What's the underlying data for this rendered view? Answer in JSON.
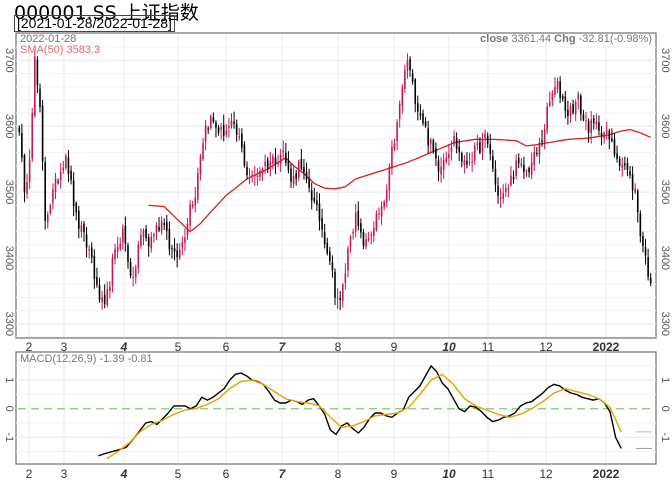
{
  "title": "000001.SS 上证指数",
  "range_label": "[2021-01-28/2022-01-28]",
  "main_panel": {
    "date_label": "2022-01-28",
    "sma_label": "SMA(50) 3583.3",
    "close_label": "close",
    "close_value": "3361.44",
    "chg_label": "Chg",
    "chg_value": "-32.81(-0.98%)"
  },
  "macd_panel": {
    "label": "MACD(12,26,9) -1.39 -0.81"
  },
  "colors": {
    "up": "#c2185b",
    "down": "#000000",
    "sma": "#d42020",
    "macd": "#000000",
    "signal": "#e8a100",
    "zero": "#7fc97f"
  },
  "chart_data": [
    {
      "type": "candlestick",
      "ylim": [
        3280,
        3740
      ],
      "yticks": [
        3300,
        3400,
        3500,
        3600,
        3700
      ],
      "x_labels": [
        {
          "label": "2",
          "bold": false,
          "italic": false
        },
        {
          "label": "3",
          "bold": false,
          "italic": false
        },
        {
          "label": "4",
          "bold": true,
          "italic": true
        },
        {
          "label": "5",
          "bold": false,
          "italic": false
        },
        {
          "label": "6",
          "bold": false,
          "italic": false
        },
        {
          "label": "7",
          "bold": true,
          "italic": true
        },
        {
          "label": "8",
          "bold": false,
          "italic": false
        },
        {
          "label": "9",
          "bold": false,
          "italic": false
        },
        {
          "label": "10",
          "bold": true,
          "italic": true
        },
        {
          "label": "11",
          "bold": false,
          "italic": false
        },
        {
          "label": "12",
          "bold": false,
          "italic": false
        },
        {
          "label": "2022",
          "bold": true,
          "italic": false
        }
      ],
      "close_anchors": [
        [
          0,
          3600
        ],
        [
          2,
          3490
        ],
        [
          4,
          3560
        ],
        [
          6,
          3700
        ],
        [
          8,
          3620
        ],
        [
          10,
          3460
        ],
        [
          14,
          3510
        ],
        [
          18,
          3560
        ],
        [
          22,
          3460
        ],
        [
          26,
          3420
        ],
        [
          28,
          3400
        ],
        [
          30,
          3350
        ],
        [
          33,
          3320
        ],
        [
          36,
          3390
        ],
        [
          38,
          3420
        ],
        [
          40,
          3440
        ],
        [
          42,
          3400
        ],
        [
          44,
          3360
        ],
        [
          46,
          3420
        ],
        [
          48,
          3440
        ],
        [
          50,
          3420
        ],
        [
          52,
          3440
        ],
        [
          54,
          3450
        ],
        [
          56,
          3460
        ],
        [
          58,
          3420
        ],
        [
          60,
          3400
        ],
        [
          62,
          3410
        ],
        [
          64,
          3440
        ],
        [
          66,
          3480
        ],
        [
          68,
          3500
        ],
        [
          70,
          3560
        ],
        [
          72,
          3600
        ],
        [
          74,
          3610
        ],
        [
          78,
          3590
        ],
        [
          82,
          3600
        ],
        [
          85,
          3580
        ],
        [
          88,
          3530
        ],
        [
          90,
          3520
        ],
        [
          94,
          3540
        ],
        [
          98,
          3550
        ],
        [
          102,
          3560
        ],
        [
          104,
          3530
        ],
        [
          106,
          3520
        ],
        [
          108,
          3540
        ],
        [
          110,
          3520
        ],
        [
          112,
          3510
        ],
        [
          114,
          3480
        ],
        [
          116,
          3460
        ],
        [
          118,
          3430
        ],
        [
          120,
          3400
        ],
        [
          122,
          3350
        ],
        [
          124,
          3330
        ],
        [
          126,
          3380
        ],
        [
          128,
          3440
        ],
        [
          130,
          3460
        ],
        [
          132,
          3430
        ],
        [
          134,
          3420
        ],
        [
          136,
          3440
        ],
        [
          138,
          3460
        ],
        [
          140,
          3470
        ],
        [
          142,
          3500
        ],
        [
          144,
          3560
        ],
        [
          146,
          3600
        ],
        [
          148,
          3660
        ],
        [
          150,
          3700
        ],
        [
          152,
          3660
        ],
        [
          154,
          3630
        ],
        [
          156,
          3610
        ],
        [
          158,
          3580
        ],
        [
          160,
          3560
        ],
        [
          162,
          3540
        ],
        [
          165,
          3560
        ],
        [
          168,
          3580
        ],
        [
          170,
          3560
        ],
        [
          172,
          3540
        ],
        [
          176,
          3560
        ],
        [
          180,
          3580
        ],
        [
          182,
          3560
        ],
        [
          184,
          3510
        ],
        [
          186,
          3490
        ],
        [
          188,
          3500
        ],
        [
          192,
          3540
        ],
        [
          196,
          3530
        ],
        [
          200,
          3560
        ],
        [
          202,
          3580
        ],
        [
          204,
          3620
        ],
        [
          206,
          3650
        ],
        [
          208,
          3660
        ],
        [
          210,
          3640
        ],
        [
          212,
          3620
        ],
        [
          214,
          3630
        ],
        [
          216,
          3640
        ],
        [
          218,
          3610
        ],
        [
          220,
          3600
        ],
        [
          224,
          3600
        ],
        [
          228,
          3580
        ],
        [
          230,
          3560
        ],
        [
          234,
          3540
        ],
        [
          238,
          3500
        ],
        [
          240,
          3440
        ],
        [
          242,
          3400
        ],
        [
          244,
          3361
        ]
      ],
      "sma_anchors": [
        [
          50,
          3480
        ],
        [
          56,
          3478
        ],
        [
          62,
          3455
        ],
        [
          66,
          3440
        ],
        [
          70,
          3452
        ],
        [
          74,
          3470
        ],
        [
          80,
          3495
        ],
        [
          88,
          3520
        ],
        [
          96,
          3535
        ],
        [
          100,
          3545
        ],
        [
          103,
          3552
        ],
        [
          106,
          3540
        ],
        [
          110,
          3528
        ],
        [
          114,
          3513
        ],
        [
          118,
          3506
        ],
        [
          122,
          3505
        ],
        [
          126,
          3508
        ],
        [
          130,
          3520
        ],
        [
          134,
          3525
        ],
        [
          138,
          3530
        ],
        [
          142,
          3535
        ],
        [
          150,
          3545
        ],
        [
          156,
          3555
        ],
        [
          162,
          3565
        ],
        [
          168,
          3575
        ],
        [
          176,
          3580
        ],
        [
          184,
          3580
        ],
        [
          192,
          3578
        ],
        [
          196,
          3570
        ],
        [
          200,
          3572
        ],
        [
          206,
          3576
        ],
        [
          212,
          3580
        ],
        [
          220,
          3582
        ],
        [
          228,
          3587
        ],
        [
          232,
          3592
        ],
        [
          236,
          3595
        ],
        [
          240,
          3590
        ],
        [
          244,
          3583
        ]
      ]
    },
    {
      "type": "line",
      "title": "MACD(12,26,9)",
      "ylim": [
        -1.9,
        1.95
      ],
      "yticks": [
        -1,
        0,
        1
      ],
      "series": [
        {
          "name": "MACD",
          "points": [
            [
              23,
              -1.65
            ],
            [
              26,
              -1.55
            ],
            [
              30,
              -1.45
            ],
            [
              33,
              -1.35
            ],
            [
              36,
              -1.0
            ],
            [
              38,
              -0.75
            ],
            [
              40,
              -0.5
            ],
            [
              42,
              -0.45
            ],
            [
              44,
              -0.55
            ],
            [
              46,
              -0.35
            ],
            [
              48,
              -0.15
            ],
            [
              50,
              0.1
            ],
            [
              52,
              0.1
            ],
            [
              54,
              0.1
            ],
            [
              56,
              0.0
            ],
            [
              58,
              0.1
            ],
            [
              60,
              0.4
            ],
            [
              62,
              0.3
            ],
            [
              64,
              0.4
            ],
            [
              66,
              0.55
            ],
            [
              68,
              0.7
            ],
            [
              70,
              1.0
            ],
            [
              72,
              1.2
            ],
            [
              74,
              1.25
            ],
            [
              76,
              1.15
            ],
            [
              78,
              1.0
            ],
            [
              80,
              0.95
            ],
            [
              82,
              0.85
            ],
            [
              84,
              0.6
            ],
            [
              86,
              0.3
            ],
            [
              88,
              0.2
            ],
            [
              90,
              0.2
            ],
            [
              92,
              0.3
            ],
            [
              94,
              0.25
            ],
            [
              96,
              0.15
            ],
            [
              98,
              0.3
            ],
            [
              100,
              0.35
            ],
            [
              102,
              0.1
            ],
            [
              104,
              -0.2
            ],
            [
              106,
              -0.75
            ],
            [
              108,
              -0.9
            ],
            [
              110,
              -0.6
            ],
            [
              112,
              -0.5
            ],
            [
              114,
              -0.7
            ],
            [
              116,
              -0.85
            ],
            [
              118,
              -0.65
            ],
            [
              120,
              -0.35
            ],
            [
              122,
              -0.15
            ],
            [
              124,
              -0.15
            ],
            [
              126,
              -0.25
            ],
            [
              128,
              -0.3
            ],
            [
              130,
              -0.15
            ],
            [
              132,
              -0.05
            ],
            [
              134,
              0.4
            ],
            [
              136,
              0.6
            ],
            [
              138,
              0.8
            ],
            [
              140,
              1.15
            ],
            [
              142,
              1.5
            ],
            [
              144,
              1.3
            ],
            [
              146,
              0.9
            ],
            [
              148,
              0.7
            ],
            [
              150,
              0.35
            ],
            [
              152,
              0.0
            ],
            [
              154,
              -0.1
            ],
            [
              156,
              0.1
            ],
            [
              158,
              0.05
            ],
            [
              160,
              -0.1
            ],
            [
              162,
              -0.3
            ],
            [
              164,
              -0.45
            ],
            [
              166,
              -0.4
            ],
            [
              168,
              -0.3
            ],
            [
              170,
              -0.25
            ],
            [
              172,
              -0.15
            ],
            [
              174,
              0.1
            ],
            [
              176,
              0.2
            ],
            [
              178,
              0.25
            ],
            [
              180,
              0.4
            ],
            [
              182,
              0.55
            ],
            [
              184,
              0.75
            ],
            [
              186,
              0.85
            ],
            [
              188,
              0.8
            ],
            [
              190,
              0.65
            ],
            [
              192,
              0.55
            ],
            [
              194,
              0.5
            ],
            [
              196,
              0.4
            ],
            [
              198,
              0.35
            ],
            [
              200,
              0.3
            ],
            [
              202,
              0.35
            ],
            [
              204,
              0.2
            ],
            [
              206,
              -0.1
            ],
            [
              208,
              -1.0
            ],
            [
              210,
              -1.39
            ]
          ]
        },
        {
          "name": "Signal",
          "points": [
            [
              26,
              -1.75
            ],
            [
              30,
              -1.5
            ],
            [
              34,
              -1.2
            ],
            [
              38,
              -0.8
            ],
            [
              42,
              -0.55
            ],
            [
              46,
              -0.4
            ],
            [
              50,
              -0.2
            ],
            [
              54,
              -0.05
            ],
            [
              58,
              0.0
            ],
            [
              62,
              0.15
            ],
            [
              66,
              0.35
            ],
            [
              70,
              0.7
            ],
            [
              74,
              0.95
            ],
            [
              78,
              1.0
            ],
            [
              82,
              0.85
            ],
            [
              86,
              0.6
            ],
            [
              90,
              0.35
            ],
            [
              94,
              0.25
            ],
            [
              98,
              0.2
            ],
            [
              102,
              0.1
            ],
            [
              106,
              -0.3
            ],
            [
              110,
              -0.65
            ],
            [
              114,
              -0.6
            ],
            [
              118,
              -0.45
            ],
            [
              122,
              -0.25
            ],
            [
              126,
              -0.2
            ],
            [
              130,
              -0.15
            ],
            [
              134,
              0.05
            ],
            [
              138,
              0.5
            ],
            [
              142,
              1.0
            ],
            [
              146,
              1.2
            ],
            [
              150,
              0.85
            ],
            [
              154,
              0.35
            ],
            [
              158,
              0.1
            ],
            [
              162,
              -0.05
            ],
            [
              166,
              -0.2
            ],
            [
              170,
              -0.3
            ],
            [
              174,
              -0.2
            ],
            [
              178,
              0.0
            ],
            [
              182,
              0.25
            ],
            [
              186,
              0.55
            ],
            [
              190,
              0.7
            ],
            [
              194,
              0.6
            ],
            [
              198,
              0.5
            ],
            [
              202,
              0.35
            ],
            [
              206,
              0.05
            ],
            [
              210,
              -0.81
            ]
          ]
        }
      ]
    }
  ]
}
